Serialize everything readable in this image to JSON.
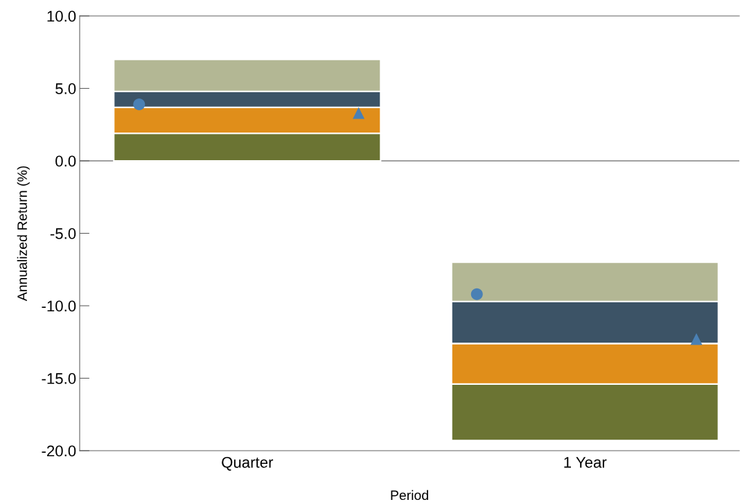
{
  "chart_data": {
    "type": "bar",
    "xlabel": "Period",
    "ylabel": "Annualized Return (%)",
    "categories": [
      "Quarter",
      "1 Year"
    ],
    "series": [
      {
        "color": "#6b7433",
        "base": [
          0,
          -19.3
        ],
        "values": [
          1.9,
          3.9
        ]
      },
      {
        "color": "#e08e1a",
        "base": [
          1.9,
          -15.4
        ],
        "values": [
          1.8,
          2.8
        ]
      },
      {
        "color": "#3c5366",
        "base": [
          3.7,
          -12.6
        ],
        "values": [
          1.1,
          2.9
        ]
      },
      {
        "color": "#b3b794",
        "base": [
          4.8,
          -9.7
        ],
        "values": [
          2.2,
          2.7
        ]
      },
      {
        "type": "scatter",
        "marker": "circle",
        "color": "#4a80b4",
        "x": [
          "Quarter",
          "1 Year"
        ],
        "values": [
          3.9,
          -9.2
        ]
      },
      {
        "type": "scatter",
        "marker": "triangle",
        "color": "#4a80b4",
        "x": [
          "Quarter",
          "1 Year"
        ],
        "values": [
          3.3,
          -12.3
        ]
      }
    ],
    "ylim": [
      -20,
      10
    ],
    "yticks": [
      {
        "value": -20,
        "label": "-20.0"
      },
      {
        "value": -15,
        "label": "-15.0"
      },
      {
        "value": -10,
        "label": "-10.0"
      },
      {
        "value": -5,
        "label": "-5.0"
      },
      {
        "value": 0,
        "label": "0.0"
      },
      {
        "value": 5,
        "label": "5.0"
      },
      {
        "value": 10,
        "label": "10.0"
      }
    ],
    "ref_lines": [
      {
        "axis": "y",
        "value": 0,
        "color": "#808080"
      }
    ],
    "grid": false
  }
}
